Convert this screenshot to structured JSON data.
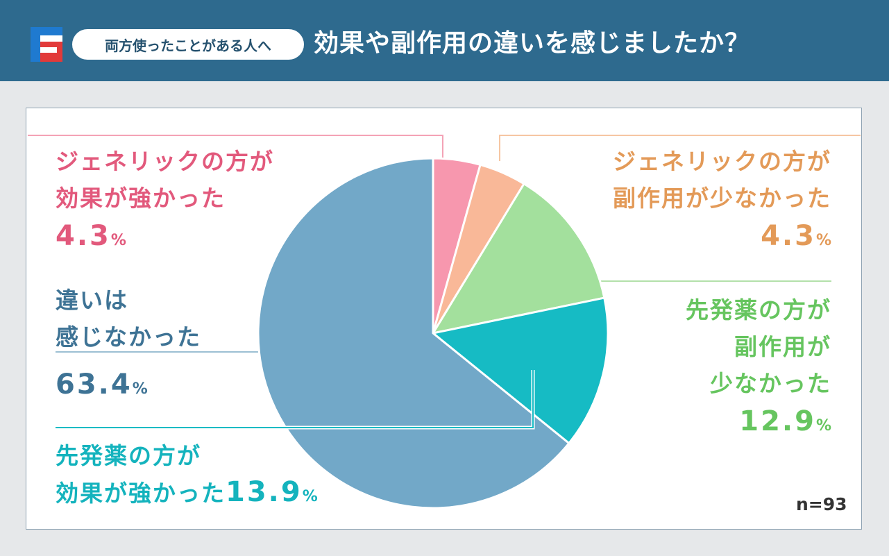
{
  "header": {
    "tag": "両方使ったことがある人へ",
    "title": "効果や副作用の違いを感じましたか？"
  },
  "colors": {
    "header_bg": "#2e6a8e",
    "logo_blue": "#1f7ad0",
    "logo_red": "#e23a3a"
  },
  "chart_data": {
    "type": "pie",
    "start_angle_deg": 0,
    "direction": "clockwise",
    "slices": [
      {
        "label_lines": [
          "ジェネリックの方が",
          "効果が強かった"
        ],
        "value": 4.3,
        "value_text": "4.3",
        "color": "#f797ae",
        "text_color": "#e2597c"
      },
      {
        "label_lines": [
          "ジェネリックの方が",
          "副作用が少なかった"
        ],
        "value": 4.3,
        "value_text": "4.3",
        "color": "#f9b898",
        "text_color": "#e39a58"
      },
      {
        "label_lines": [
          "先発薬の方が",
          "副作用が",
          "少なかった"
        ],
        "value": 12.9,
        "value_text": "12.9",
        "color": "#a3e09d",
        "text_color": "#66c55f"
      },
      {
        "label_lines": [
          "先発薬の方が",
          "効果が強かった"
        ],
        "value": 13.9,
        "value_text": "13.9",
        "color": "#16bbc4",
        "text_color": "#14b3bd"
      },
      {
        "label_lines": [
          "違いは",
          "感じなかった"
        ],
        "value": 63.4,
        "value_text": "63.4",
        "color": "#72a8c8",
        "text_color": "#3e7395"
      }
    ],
    "percent_symbol": "%",
    "n_text": "n=93"
  }
}
